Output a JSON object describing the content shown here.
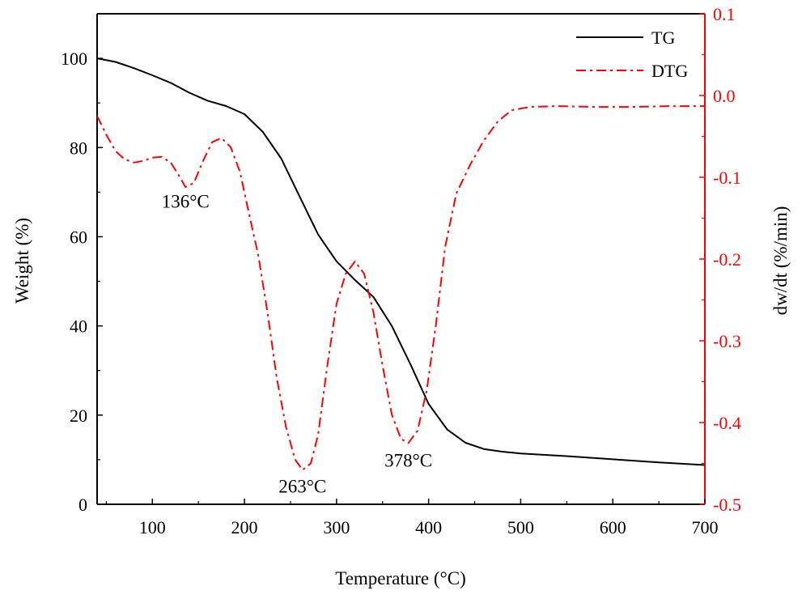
{
  "chart_data": {
    "type": "line",
    "title": "",
    "xlabel": "Temperature (°C)",
    "ylabel_left": "Weight (%)",
    "ylabel_right": "dw/dt (%/min)",
    "xlim": [
      40,
      700
    ],
    "ylim_left": [
      0,
      110
    ],
    "ylim_right": [
      -0.5,
      0.1
    ],
    "x_ticks": [
      100,
      200,
      300,
      400,
      500,
      600,
      700
    ],
    "x_tick_labels": [
      "100",
      "200",
      "300",
      "400",
      "500",
      "600",
      "700"
    ],
    "y_left_ticks": [
      0,
      20,
      40,
      60,
      80,
      100
    ],
    "y_left_tick_labels": [
      "0",
      "20",
      "40",
      "60",
      "80",
      "100"
    ],
    "y_right_ticks": [
      -0.5,
      -0.4,
      -0.3,
      -0.2,
      -0.1,
      0.0,
      0.1
    ],
    "y_right_tick_labels": [
      "-0.5",
      "-0.4",
      "-0.3",
      "-0.2",
      "-0.1",
      "0.0",
      "0.1"
    ],
    "grid": false,
    "legend_position": "top-right",
    "colors": {
      "tg": "#000000",
      "dtg": "#ff0000",
      "right_axis": "#ff0000",
      "left_axis": "#000000"
    },
    "series": [
      {
        "name": "TG",
        "axis": "left",
        "style": "solid",
        "x": [
          40,
          60,
          80,
          100,
          120,
          140,
          160,
          180,
          200,
          220,
          240,
          260,
          280,
          300,
          320,
          340,
          360,
          380,
          400,
          420,
          440,
          460,
          480,
          500,
          550,
          600,
          650,
          700
        ],
        "y": [
          100,
          99.2,
          97.8,
          96.2,
          94.5,
          92.3,
          90.5,
          89.3,
          87.5,
          83.5,
          77.5,
          69.0,
          60.5,
          54.5,
          50.3,
          46.5,
          40.0,
          31.5,
          22.5,
          16.8,
          13.8,
          12.4,
          11.8,
          11.4,
          10.8,
          10.1,
          9.4,
          8.8
        ]
      },
      {
        "name": "DTG",
        "axis": "right",
        "style": "dash-dot",
        "x": [
          40,
          50,
          60,
          70,
          80,
          90,
          100,
          110,
          120,
          130,
          136,
          145,
          155,
          165,
          175,
          185,
          195,
          205,
          215,
          225,
          235,
          245,
          255,
          263,
          272,
          280,
          290,
          300,
          310,
          320,
          330,
          340,
          350,
          360,
          370,
          378,
          388,
          398,
          408,
          418,
          430,
          445,
          460,
          475,
          490,
          510,
          540,
          580,
          620,
          660,
          700
        ],
        "y": [
          -0.025,
          -0.048,
          -0.068,
          -0.078,
          -0.082,
          -0.08,
          -0.076,
          -0.075,
          -0.082,
          -0.1,
          -0.112,
          -0.107,
          -0.08,
          -0.057,
          -0.052,
          -0.063,
          -0.093,
          -0.145,
          -0.195,
          -0.265,
          -0.345,
          -0.405,
          -0.445,
          -0.458,
          -0.45,
          -0.415,
          -0.33,
          -0.255,
          -0.218,
          -0.203,
          -0.218,
          -0.265,
          -0.33,
          -0.39,
          -0.42,
          -0.425,
          -0.41,
          -0.36,
          -0.28,
          -0.185,
          -0.12,
          -0.085,
          -0.055,
          -0.032,
          -0.018,
          -0.014,
          -0.013,
          -0.014,
          -0.014,
          -0.013,
          -0.013
        ]
      }
    ],
    "annotations": [
      {
        "text": "136°C",
        "x": 136,
        "y_left": 66.5
      },
      {
        "text": "263°C",
        "x": 263,
        "y_left": 2.6
      },
      {
        "text": "378°C",
        "x": 378,
        "y_left": 8.4
      }
    ]
  }
}
